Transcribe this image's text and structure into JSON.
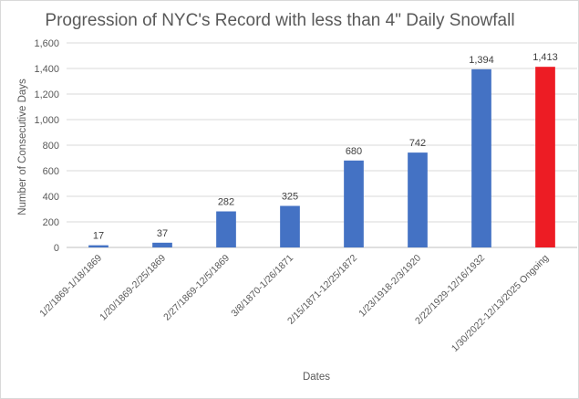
{
  "chart_data": {
    "type": "bar",
    "title": "Progression of NYC's Record with less than 4\" Daily Snowfall",
    "xlabel": "Dates",
    "ylabel": "Number of Consecutive Days",
    "ylim": [
      0,
      1600
    ],
    "yticks": [
      "0",
      "200",
      "400",
      "600",
      "800",
      "1,000",
      "1,200",
      "1,400",
      "1,600"
    ],
    "grid": true,
    "legend": "none",
    "categories": [
      "1/2/1869-1/18/1869",
      "1/20/1869-2/25/1869",
      "2/27/1869-12/5/1869",
      "3/8/1870-1/26/1871",
      "2/15/1871-12/25/1872",
      "1/23/1918-2/3/1920",
      "2/22/1929-12/16/1932",
      "1/30/2022-12/13/2025 Ongoing"
    ],
    "values": [
      17,
      37,
      282,
      325,
      680,
      742,
      1394,
      1413
    ],
    "value_labels": [
      "17",
      "37",
      "282",
      "325",
      "680",
      "742",
      "1,394",
      "1,413"
    ],
    "bar_colors": [
      "#4472c4",
      "#4472c4",
      "#4472c4",
      "#4472c4",
      "#4472c4",
      "#4472c4",
      "#4472c4",
      "#ed1c24"
    ]
  }
}
